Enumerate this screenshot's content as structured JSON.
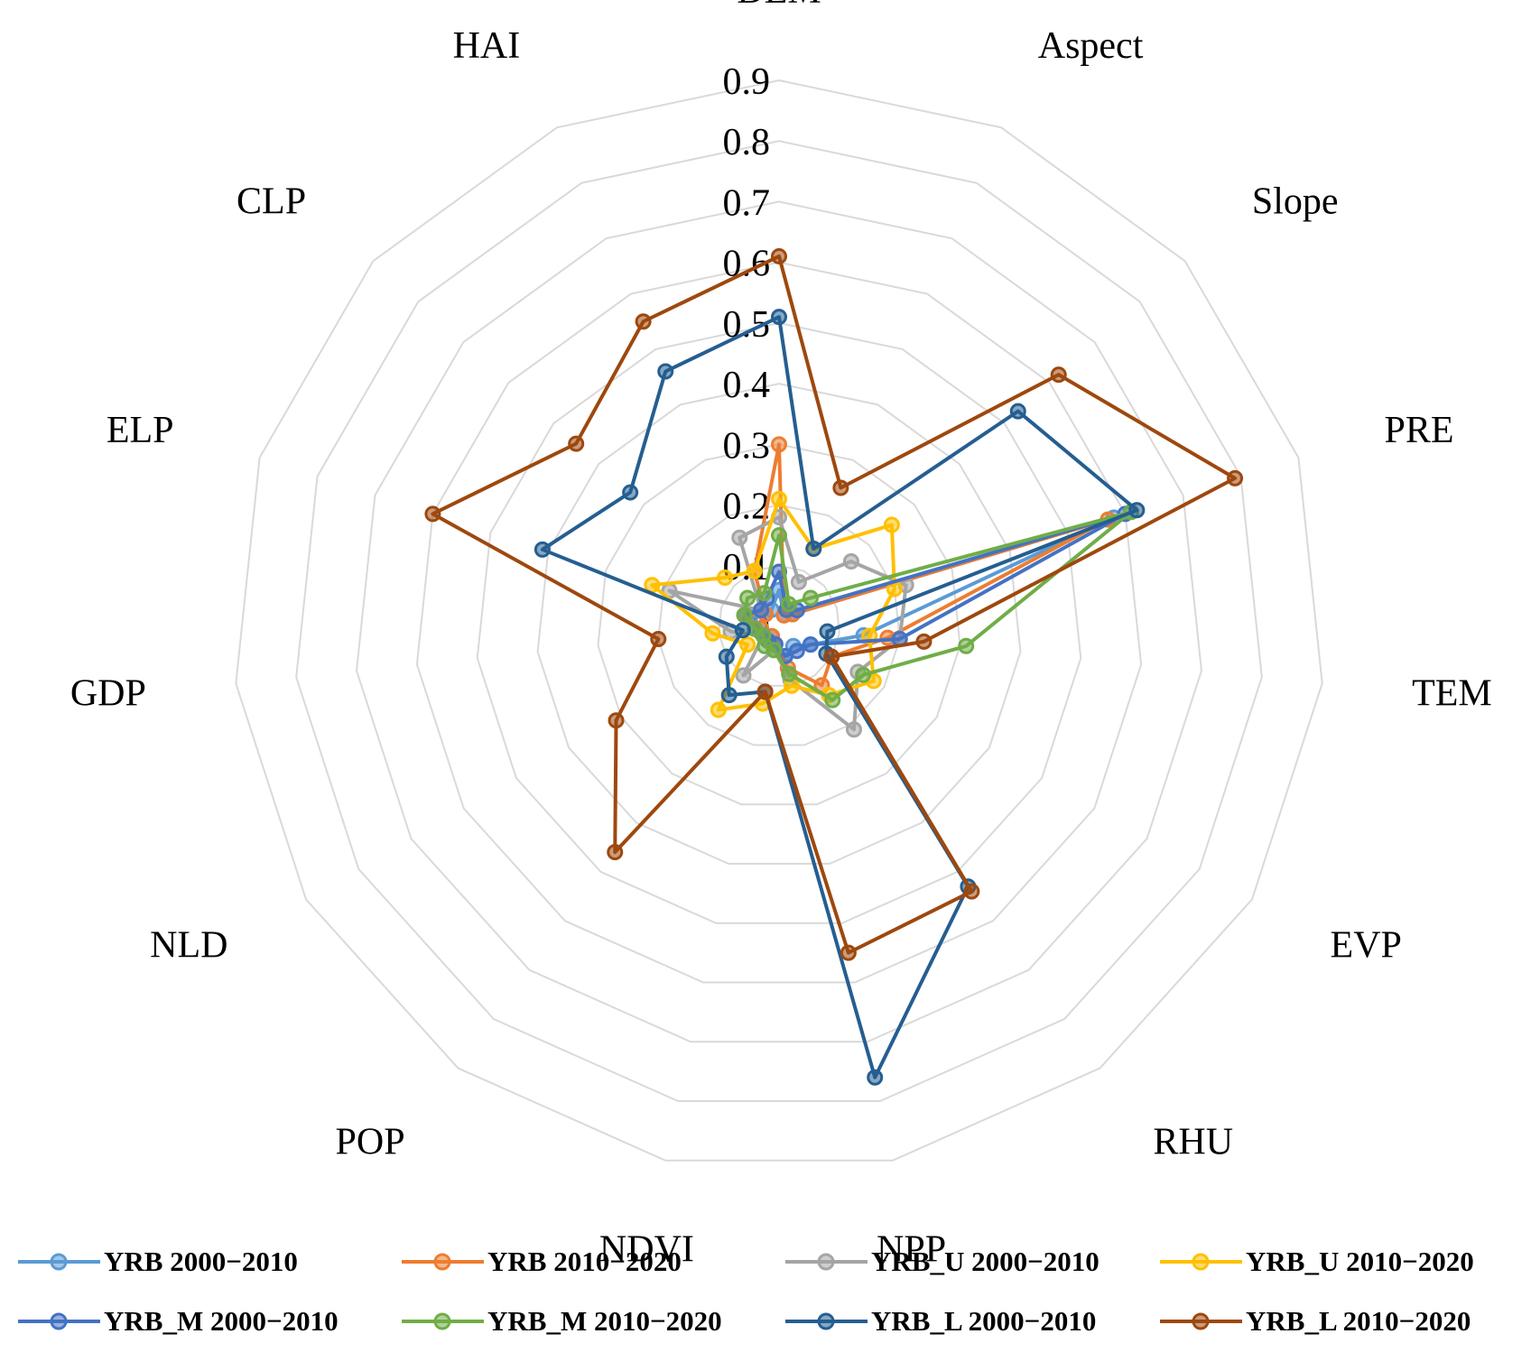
{
  "chart_data": {
    "type": "radar",
    "axes": [
      "DEM",
      "Aspect",
      "Slope",
      "PRE",
      "TEM",
      "EVP",
      "RHU",
      "NPP",
      "NDVI",
      "POP",
      "NLD",
      "GDP",
      "ELP",
      "CLP",
      "HAI"
    ],
    "tick_labels": [
      "0",
      "0.1",
      "0.2",
      "0.3",
      "0.4",
      "0.5",
      "0.6",
      "0.7",
      "0.8",
      "0.9"
    ],
    "rmax": 0.9,
    "grid": true,
    "legend_position": "bottom",
    "series": [
      {
        "name": "YRB 2000−2010",
        "color": "#5B9BD5",
        "values": [
          0.06,
          0.02,
          0.03,
          0.58,
          0.14,
          0.06,
          0.04,
          0.05,
          0.03,
          0.02,
          0.03,
          0.03,
          0.05,
          0.03,
          0.03
        ]
      },
      {
        "name": "YRB 2010−2020",
        "color": "#ED7D31",
        "values": [
          0.3,
          0.02,
          0.03,
          0.57,
          0.18,
          0.1,
          0.12,
          0.07,
          0.03,
          0.02,
          0.03,
          0.03,
          0.06,
          0.03,
          0.1
        ]
      },
      {
        "name": "YRB_U 2000−2010",
        "color": "#A5A5A5",
        "values": [
          0.18,
          0.08,
          0.16,
          0.22,
          0.2,
          0.15,
          0.21,
          0.09,
          0.04,
          0.1,
          0.03,
          0.08,
          0.19,
          0.04,
          0.16
        ]
      },
      {
        "name": "YRB_U 2010−2020",
        "color": "#FFC000",
        "values": [
          0.21,
          0.14,
          0.25,
          0.2,
          0.15,
          0.18,
          0.14,
          0.1,
          0.13,
          0.17,
          0.06,
          0.11,
          0.22,
          0.12,
          0.1
        ]
      },
      {
        "name": "YRB_M 2000−2010",
        "color": "#4472C4",
        "values": [
          0.09,
          0.03,
          0.04,
          0.6,
          0.2,
          0.06,
          0.05,
          0.05,
          0.03,
          0.03,
          0.03,
          0.04,
          0.06,
          0.04,
          0.05
        ]
      },
      {
        "name": "YRB_M 2010−2020",
        "color": "#70AD47",
        "values": [
          0.15,
          0.04,
          0.07,
          0.61,
          0.31,
          0.16,
          0.15,
          0.08,
          0.04,
          0.04,
          0.03,
          0.04,
          0.06,
          0.07,
          0.06
        ]
      },
      {
        "name": "YRB_L 2000−2010",
        "color": "#255E91",
        "values": [
          0.51,
          0.14,
          0.53,
          0.62,
          0.08,
          0.09,
          0.53,
          0.76,
          0.11,
          0.14,
          0.1,
          0.06,
          0.41,
          0.33,
          0.46
        ]
      },
      {
        "name": "YRB_L 2010−2020",
        "color": "#9E480E",
        "values": [
          0.61,
          0.25,
          0.62,
          0.79,
          0.24,
          0.1,
          0.54,
          0.55,
          0.11,
          0.46,
          0.31,
          0.2,
          0.6,
          0.45,
          0.55
        ]
      }
    ]
  }
}
